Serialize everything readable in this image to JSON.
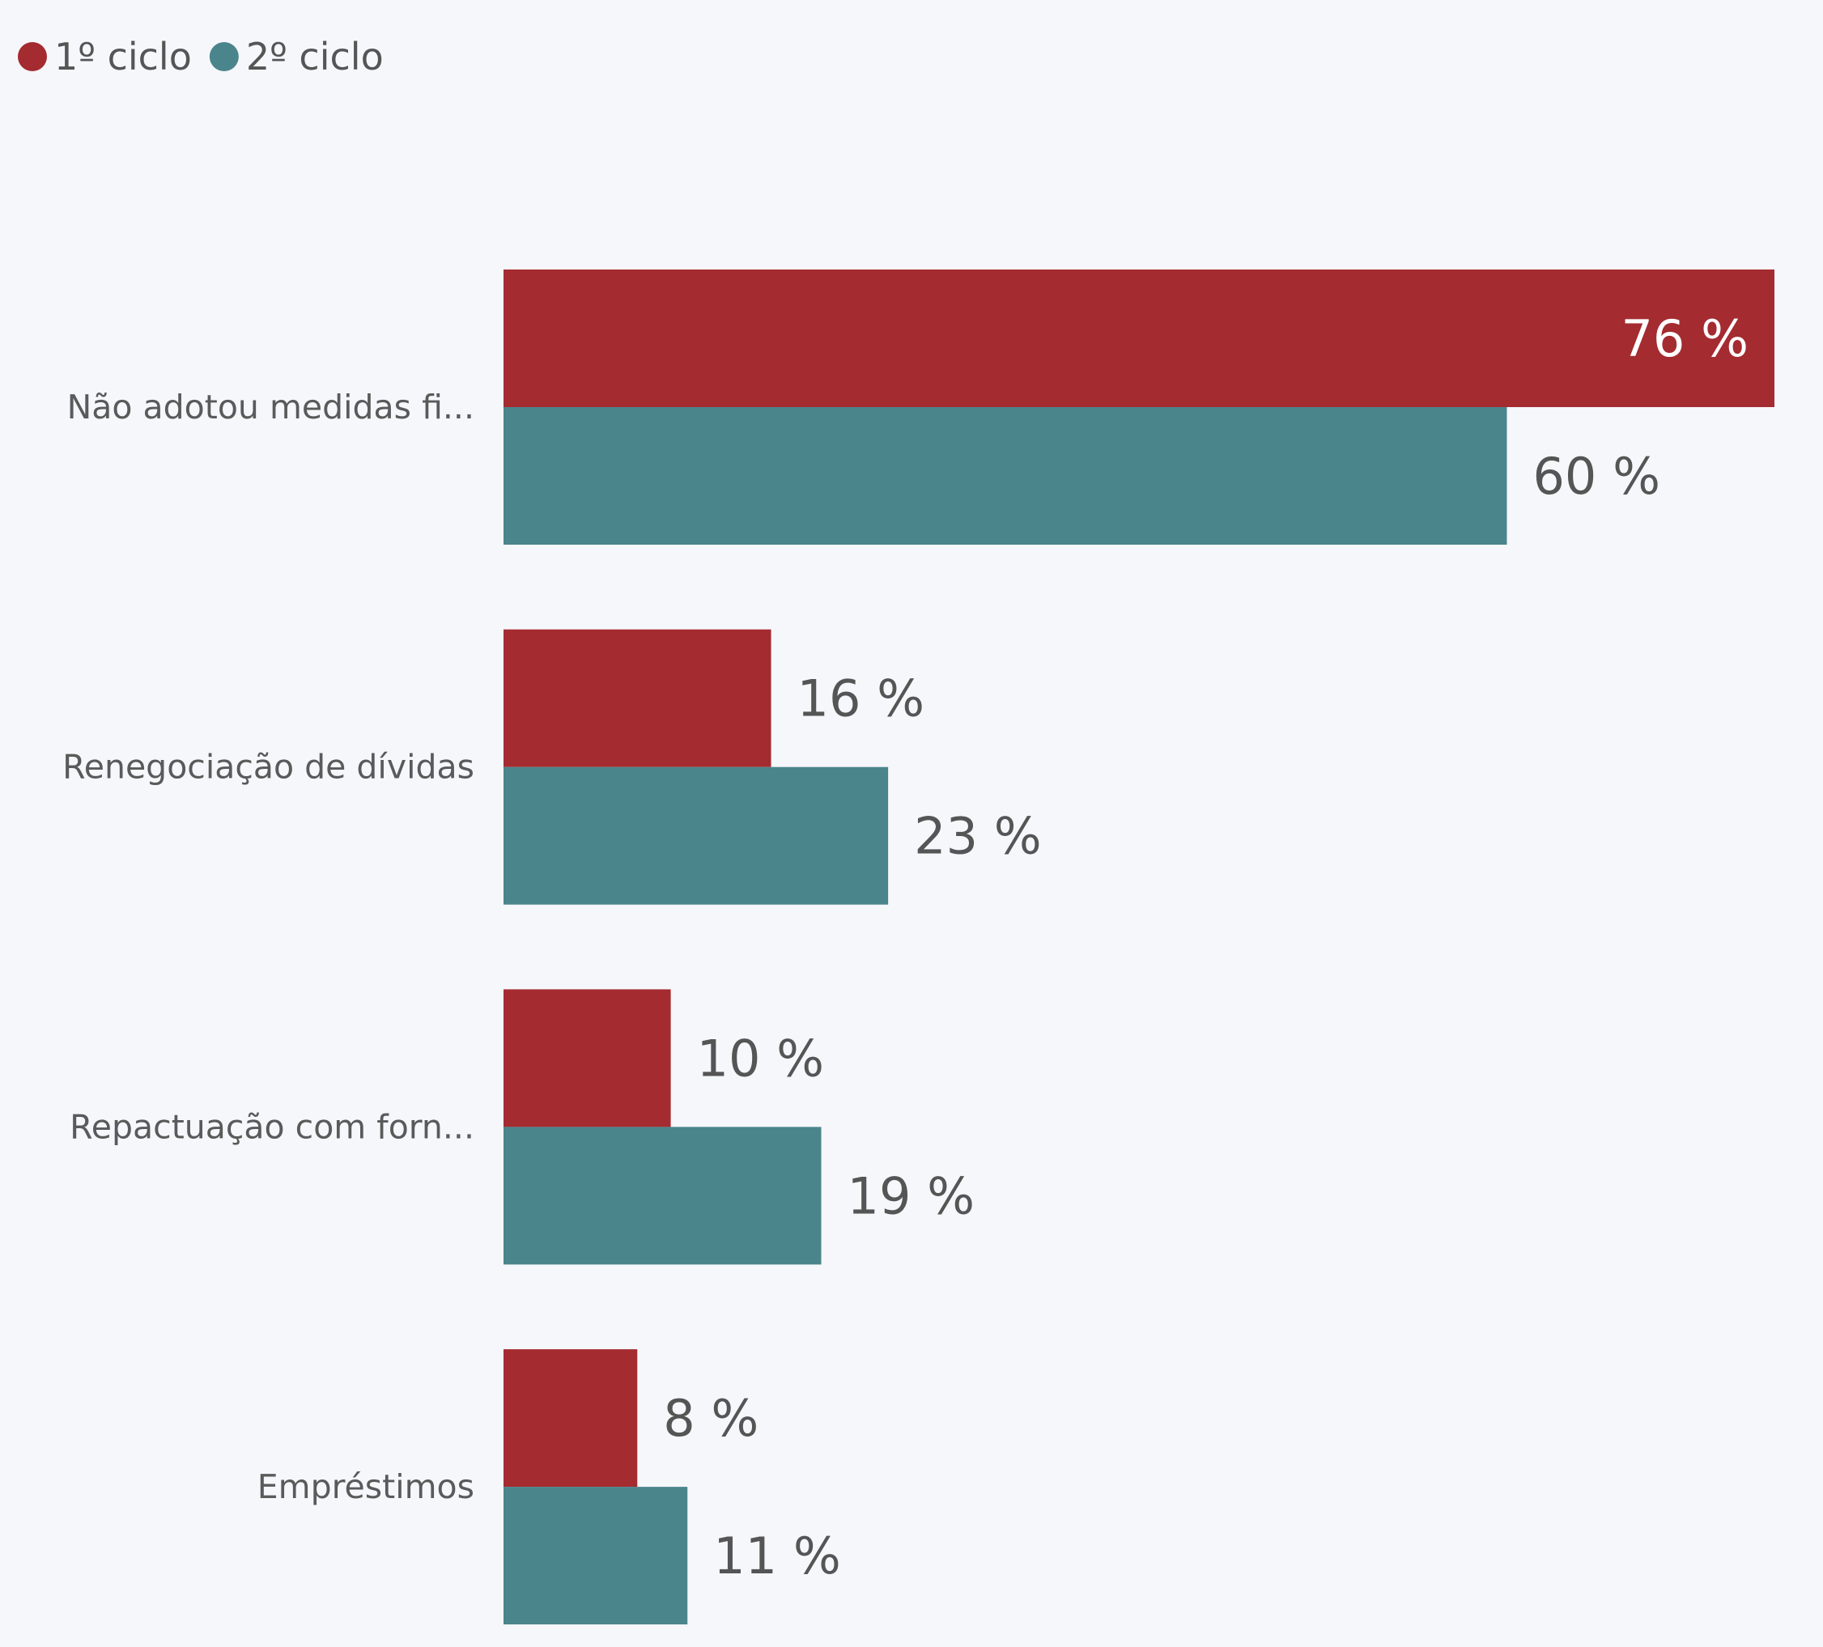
{
  "chart_data": {
    "type": "bar",
    "orientation": "horizontal",
    "categories": [
      "Não adotou medidas fi...",
      "Renegociação de dívidas",
      "Repactuação com forn...",
      "Empréstimos"
    ],
    "series": [
      {
        "name": "1º ciclo",
        "color": "#a42b30",
        "values": [
          76,
          16,
          10,
          8
        ]
      },
      {
        "name": "2º ciclo",
        "color": "#4a858b",
        "values": [
          60,
          23,
          19,
          11
        ]
      }
    ],
    "value_labels": [
      [
        "76 %",
        "16 %",
        "10 %",
        "8 %"
      ],
      [
        "60 %",
        "23 %",
        "19 %",
        "11 %"
      ]
    ],
    "xlim": [
      0,
      76
    ],
    "grid": false,
    "legend_position": "top-left",
    "colors": {
      "background": "#f6f7fb",
      "category_text": "#5a5a5a",
      "value_text": "#555555",
      "value_text_inside": "#ffffff"
    }
  }
}
